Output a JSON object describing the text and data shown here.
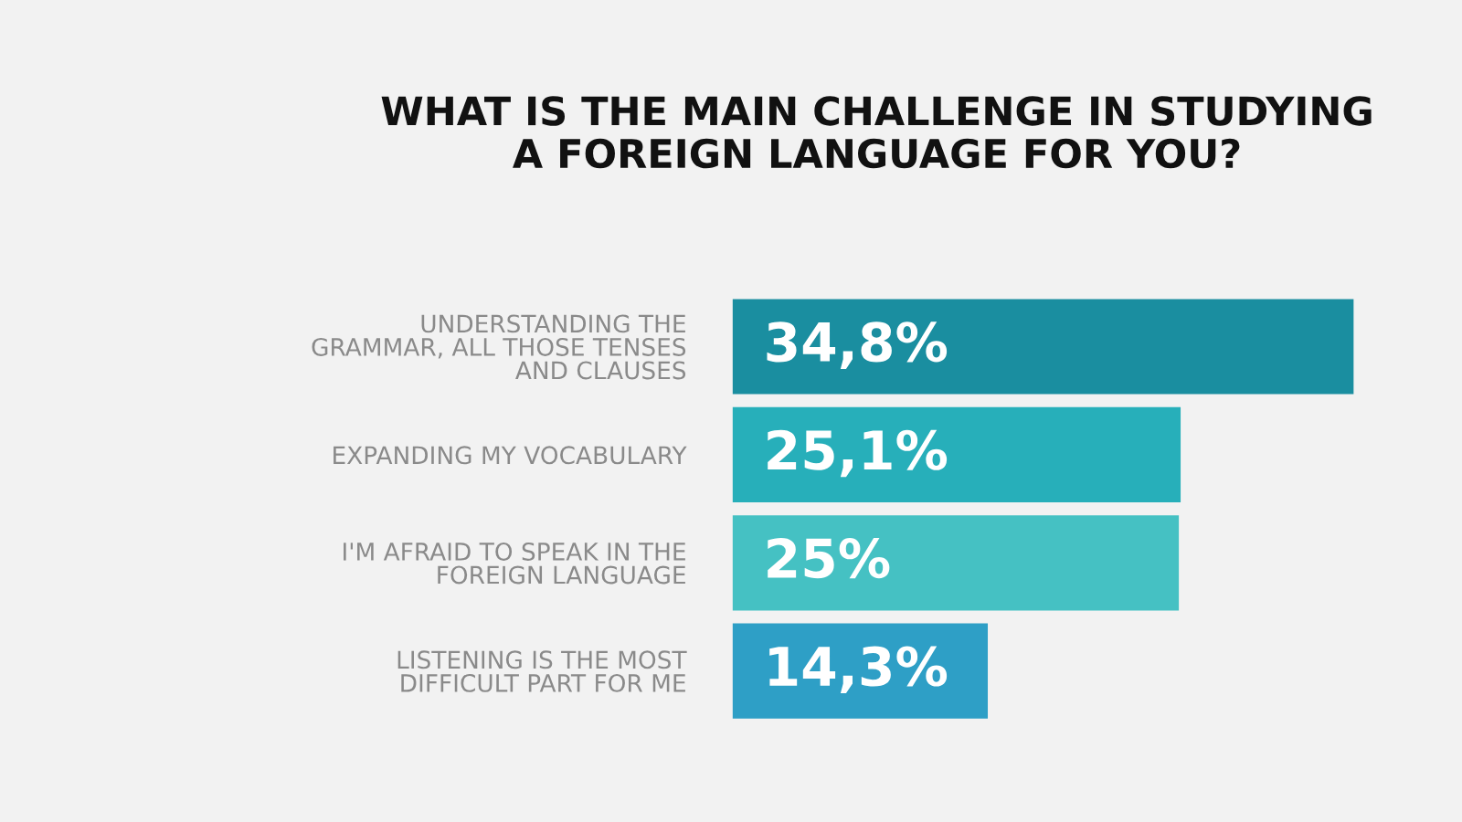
{
  "chart_data": {
    "type": "bar",
    "orientation": "horizontal",
    "title": "WHAT IS THE MAIN CHALLENGE IN STUDYING\nA FOREIGN LANGUAGE FOR YOU?",
    "categories": [
      "UNDERSTANDING THE\nGRAMMAR, ALL THOSE TENSES\nAND CLAUSES",
      "EXPANDING MY VOCABULARY",
      "I'M AFRAID TO SPEAK IN THE\nFOREIGN LANGUAGE",
      "LISTENING IS THE MOST\nDIFFICULT PART FOR ME"
    ],
    "values": [
      34.8,
      25.1,
      25,
      14.3
    ],
    "value_labels": [
      "34,8%",
      "25,1%",
      "25%",
      "14,3%"
    ],
    "colors": [
      "#1a8ea0",
      "#27afba",
      "#45c1c3",
      "#2e9fc6"
    ],
    "xlim": [
      0,
      34.8
    ],
    "tick_labels": "y",
    "grid": false,
    "legend": false
  }
}
